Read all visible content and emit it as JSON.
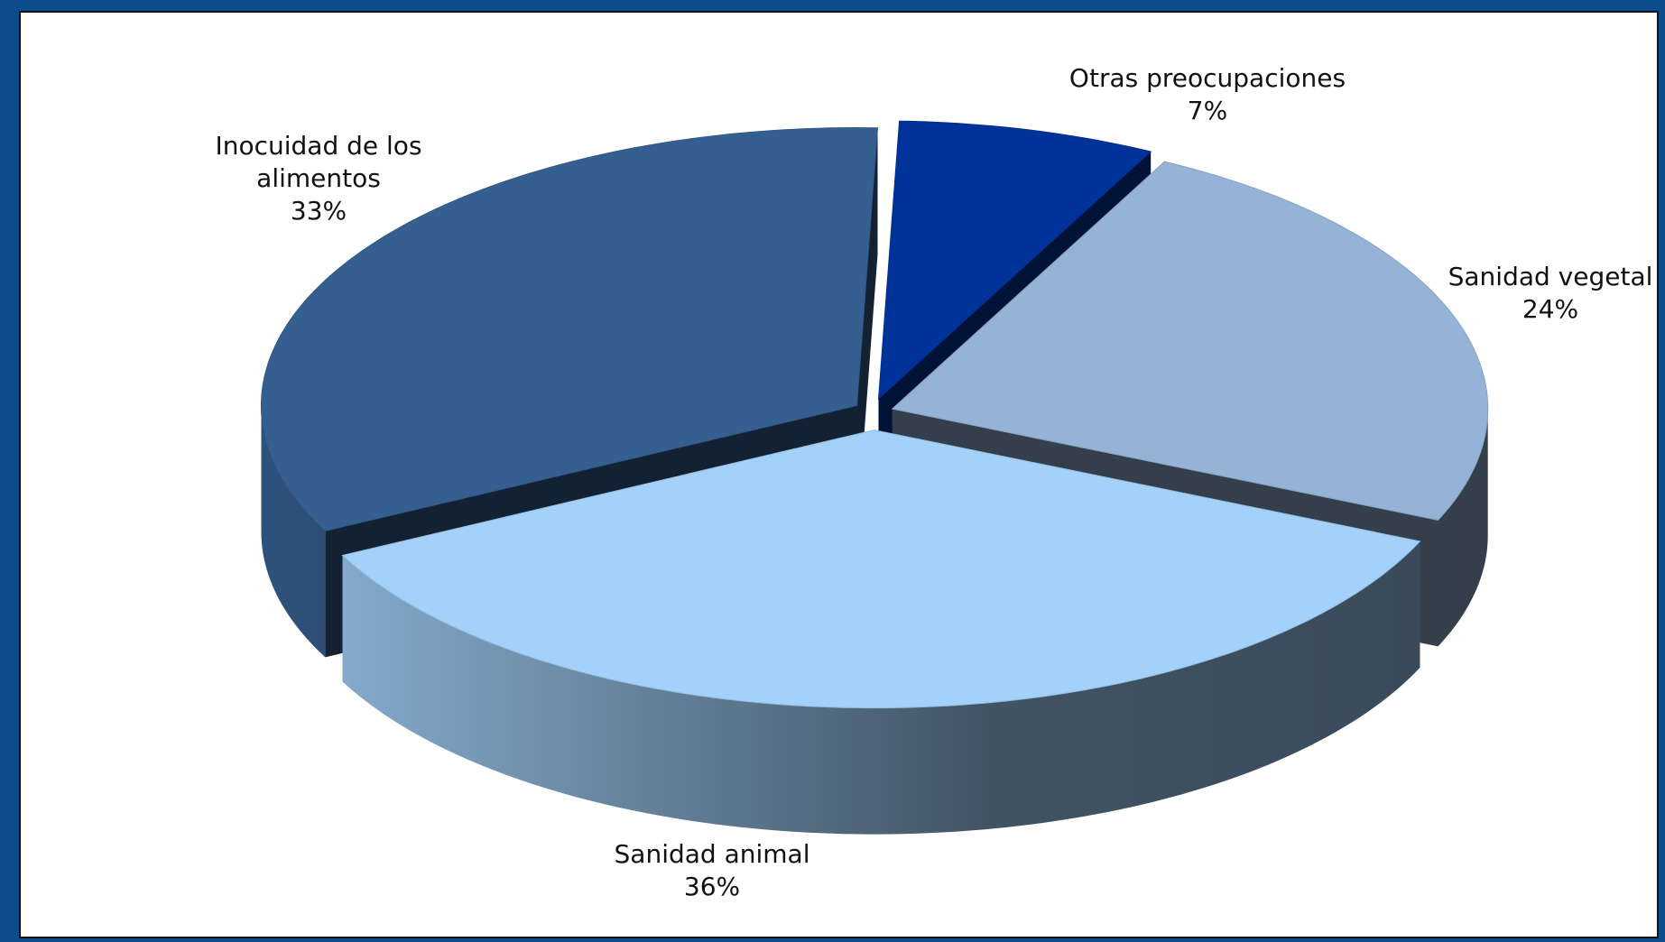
{
  "chart_data": {
    "type": "pie",
    "categories": [
      "Otras preocupaciones",
      "Sanidad vegetal",
      "Sanidad animal",
      "Inocuidad de los alimentos"
    ],
    "values": [
      7,
      24,
      36,
      33
    ],
    "value_labels": [
      "7%",
      "24%",
      "36%",
      "33%"
    ],
    "colors": [
      "#003399",
      "#95b3d7",
      "#a3d1fa",
      "#365f91"
    ]
  }
}
